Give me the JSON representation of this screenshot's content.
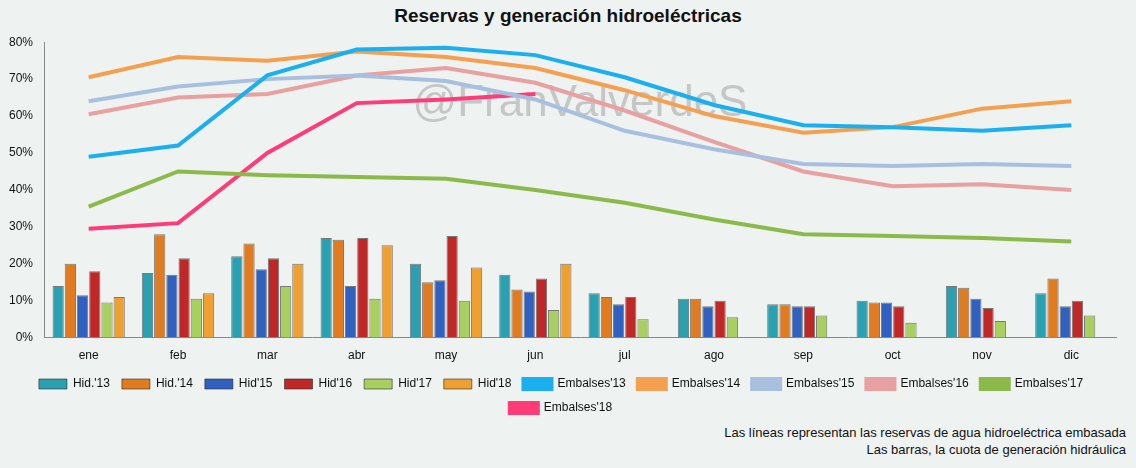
{
  "chart_data": {
    "type": "bar",
    "title": "Reservas y generación hidroeléctricas",
    "categories": [
      "ene",
      "feb",
      "mar",
      "abr",
      "may",
      "jun",
      "jul",
      "ago",
      "sep",
      "oct",
      "nov",
      "dic"
    ],
    "series": [
      {
        "name": "Hid.'13",
        "type": "bar",
        "color": "#2aa0b0",
        "values": [
          14,
          17.5,
          22,
          27,
          20,
          17,
          12,
          10.5,
          9,
          10,
          14,
          12
        ]
      },
      {
        "name": "Hid.'14",
        "type": "bar",
        "color": "#e07b20",
        "values": [
          20,
          28,
          25.5,
          26.5,
          15,
          13,
          11,
          10.5,
          9,
          9.5,
          13.5,
          16
        ]
      },
      {
        "name": "Hid'15",
        "type": "bar",
        "color": "#3060c0",
        "values": [
          11.5,
          17,
          18.5,
          14,
          15.5,
          12.5,
          9,
          8.5,
          8.5,
          9.5,
          10.5,
          8.5
        ]
      },
      {
        "name": "Hid'16",
        "type": "bar",
        "color": "#c02828",
        "values": [
          18,
          21.5,
          21.5,
          27,
          27.5,
          16,
          11,
          10,
          8.5,
          8.5,
          8,
          10
        ]
      },
      {
        "name": "Hid'17",
        "type": "bar",
        "color": "#a8d060",
        "values": [
          9.5,
          10.5,
          14,
          10.5,
          10,
          7.5,
          5,
          5.5,
          6,
          4,
          4.5,
          6
        ]
      },
      {
        "name": "Hid'18",
        "type": "bar",
        "color": "#f0a030",
        "values": [
          11,
          12,
          20,
          25,
          19,
          20,
          null,
          null,
          null,
          null,
          null,
          null
        ]
      },
      {
        "name": "Embalses'13",
        "type": "line",
        "marker": "none",
        "color": "#1ab0f0",
        "values": [
          49,
          52,
          71,
          78,
          78.5,
          76.5,
          70.5,
          63,
          57.5,
          57,
          56,
          57.5
        ]
      },
      {
        "name": "Embalses'14",
        "type": "line",
        "marker": "none",
        "color": "#f5a050",
        "values": [
          70.5,
          76,
          75,
          77.5,
          76,
          73,
          67,
          60,
          55.5,
          57,
          62,
          64
        ]
      },
      {
        "name": "Embalses'15",
        "type": "line",
        "marker": "none",
        "color": "#a8c0e0",
        "values": [
          64,
          68,
          70,
          71,
          69.5,
          64.5,
          56,
          51,
          47,
          46.5,
          47,
          46.5
        ]
      },
      {
        "name": "Embalses'16",
        "type": "line",
        "marker": "none",
        "color": "#e8a0a0",
        "values": [
          60.5,
          65,
          66,
          71,
          73,
          69,
          61.5,
          53,
          45,
          41,
          41.5,
          40
        ]
      },
      {
        "name": "Embalses'17",
        "type": "line",
        "marker": "none",
        "color": "#8cba4a",
        "values": [
          35.5,
          45,
          44,
          43.5,
          43,
          40,
          36.5,
          32,
          28,
          27.5,
          27,
          26
        ]
      },
      {
        "name": "Embalses'18",
        "type": "line",
        "marker": "none",
        "color": "#ff3c78",
        "values": [
          29.5,
          31,
          50,
          63.5,
          64.5,
          66,
          null,
          null,
          null,
          null,
          null,
          null
        ]
      }
    ],
    "ylim": [
      0,
      80
    ],
    "yticks": [
      {
        "value": 0,
        "label": "0%"
      },
      {
        "value": 10,
        "label": "10%"
      },
      {
        "value": 20,
        "label": "20%"
      },
      {
        "value": 30,
        "label": "30%"
      },
      {
        "value": 40,
        "label": "40%"
      },
      {
        "value": 50,
        "label": "50%"
      },
      {
        "value": 60,
        "label": "60%"
      },
      {
        "value": 70,
        "label": "70%"
      },
      {
        "value": 80,
        "label": "80%"
      }
    ],
    "grid": false,
    "legend": "bottom",
    "watermark": "@FranValverdeS",
    "notes": [
      "Las líneas representan las reservas de agua hidroeléctrica embasada",
      "Las barras, la cuota de generación hidráulica"
    ]
  }
}
